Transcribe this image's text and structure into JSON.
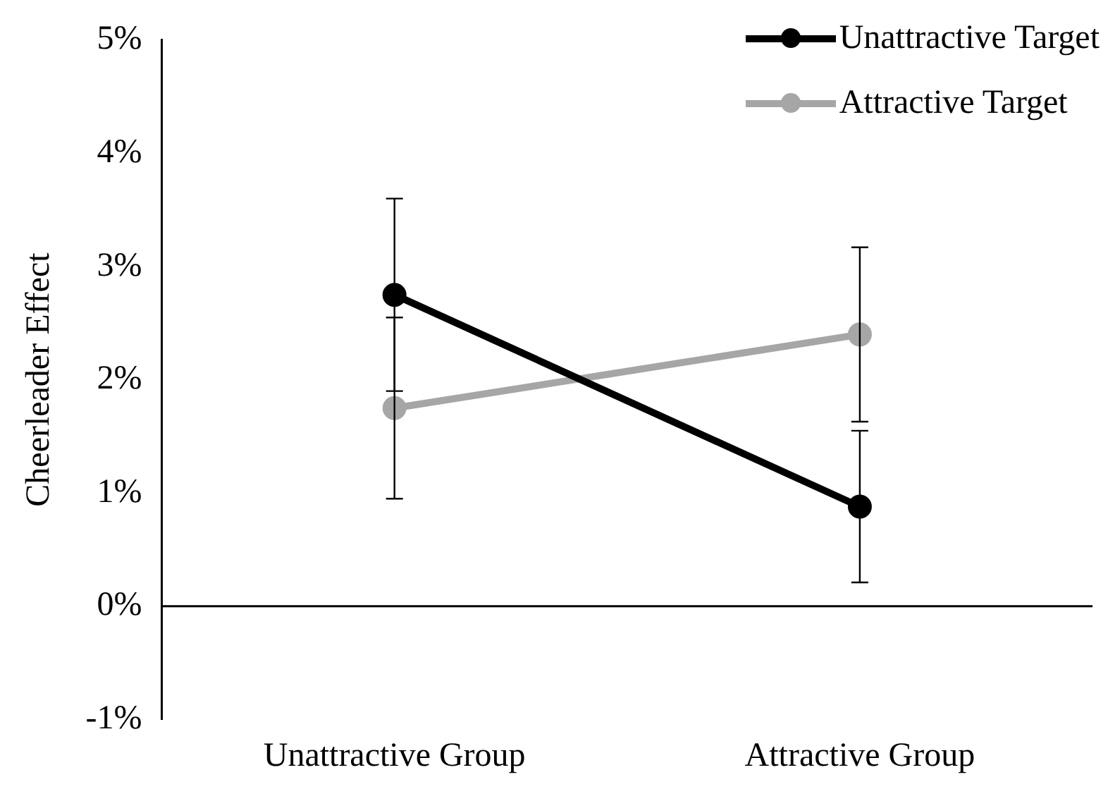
{
  "chart_data": {
    "type": "line",
    "ylabel": "Cheerleader Effect",
    "categories": [
      "Unattractive Group",
      "Attractive Group"
    ],
    "series": [
      {
        "name": "Unattractive Target",
        "color": "#000000",
        "values": [
          2.75,
          0.88
        ],
        "errors": [
          0.85,
          0.67
        ]
      },
      {
        "name": "Attractive Target",
        "color": "#a6a6a6",
        "values": [
          1.75,
          2.4
        ],
        "errors": [
          0.8,
          0.77
        ]
      }
    ],
    "ylim": [
      -1,
      5
    ],
    "yticks": [
      {
        "value": -1,
        "label": "-1%"
      },
      {
        "value": 0,
        "label": "0%"
      },
      {
        "value": 1,
        "label": "1%"
      },
      {
        "value": 2,
        "label": "2%"
      },
      {
        "value": 3,
        "label": "3%"
      },
      {
        "value": 4,
        "label": "4%"
      },
      {
        "value": 5,
        "label": "5%"
      }
    ],
    "ref_lines": [
      {
        "axis": "y",
        "value": 0,
        "color": "#000000"
      }
    ],
    "grid": false,
    "legend": "top right",
    "marker": "circle",
    "line_style": "solid"
  }
}
